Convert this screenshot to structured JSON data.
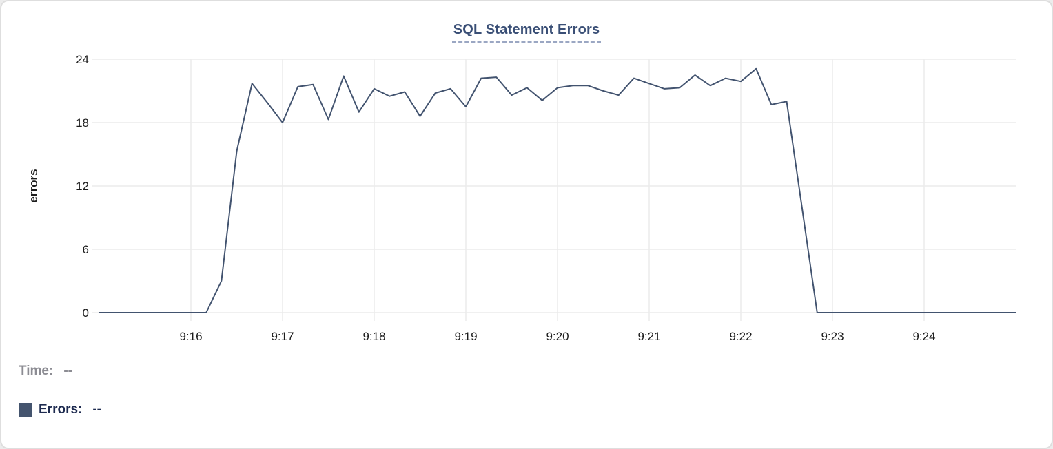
{
  "card": {
    "title": "SQL Statement Errors"
  },
  "colors": {
    "line": "#42536f",
    "title": "#3a4f76",
    "title_underline": "#9ba7c3",
    "grid": "#ececec",
    "axis_text": "#1c1c1c",
    "time_label": "#8c8c93",
    "errors_label": "#1e2b50",
    "swatch": "#44546e",
    "card_border": "#dedede"
  },
  "tooltip": {
    "time_label": "Time:",
    "time_value": "--",
    "errors_label": "Errors:",
    "errors_value": "--"
  },
  "chart_data": {
    "type": "line",
    "title": "SQL Statement Errors",
    "xlabel": "",
    "ylabel": "errors",
    "ylim": [
      0,
      24
    ],
    "y_ticks": [
      0,
      6,
      12,
      18,
      24
    ],
    "x_start": "9:15:00",
    "x_end": "9:25:00",
    "interval_seconds": 10,
    "x_tick_labels": [
      "9:16",
      "9:17",
      "9:18",
      "9:19",
      "9:20",
      "9:21",
      "9:22",
      "9:23",
      "9:24"
    ],
    "grid": true,
    "legend_position": "none",
    "series": [
      {
        "name": "Errors",
        "color": "#42536f",
        "values": [
          0,
          0,
          0,
          0,
          0,
          0,
          0,
          0,
          3,
          15.3,
          21.7,
          19.9,
          18,
          21.4,
          21.6,
          18.3,
          22.4,
          19,
          21.2,
          20.5,
          20.9,
          18.6,
          20.8,
          21.2,
          19.5,
          22.2,
          22.3,
          20.6,
          21.3,
          20.1,
          21.3,
          21.5,
          21.5,
          21.0,
          20.6,
          22.2,
          21.7,
          21.2,
          21.3,
          22.5,
          21.5,
          22.2,
          21.9,
          23.1,
          19.7,
          20,
          10,
          0,
          0,
          0,
          0,
          0,
          0,
          0,
          0,
          0,
          0,
          0,
          0,
          0,
          0
        ]
      }
    ]
  }
}
